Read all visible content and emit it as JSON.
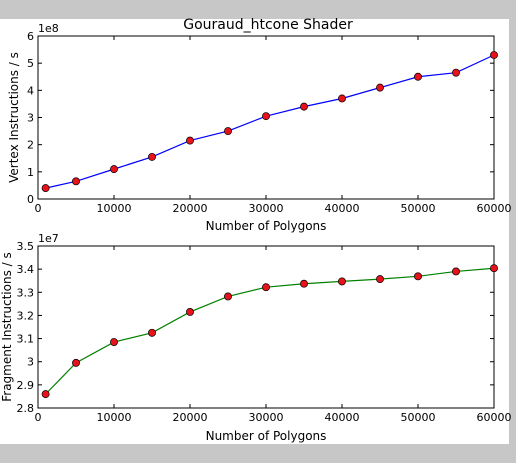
{
  "chart_data": [
    {
      "type": "line",
      "title": "Gouraud_htcone Shader",
      "xlabel": "Number of Polygons",
      "ylabel": "Vertex Instructions / s",
      "y_offset_label": "1e8",
      "xlim": [
        0,
        60000
      ],
      "ylim": [
        0,
        6
      ],
      "x_ticks": [
        0,
        10000,
        20000,
        30000,
        40000,
        50000,
        60000
      ],
      "y_ticks": [
        0,
        1,
        2,
        3,
        4,
        5,
        6
      ],
      "line_color": "#0000ff",
      "marker_color": "#e8121a",
      "series": [
        {
          "name": "Vertex Instructions / s",
          "x": [
            1000,
            5000,
            10000,
            15000,
            20000,
            25000,
            30000,
            35000,
            40000,
            45000,
            50000,
            55000,
            60000
          ],
          "values": [
            0.4,
            0.65,
            1.1,
            1.55,
            2.15,
            2.5,
            3.05,
            3.4,
            3.7,
            4.1,
            4.5,
            4.65,
            5.3
          ]
        }
      ]
    },
    {
      "type": "line",
      "title": "",
      "xlabel": "Number of Polygons",
      "ylabel": "Fragment Instructions / s",
      "y_offset_label": "1e7",
      "xlim": [
        0,
        60000
      ],
      "ylim": [
        2.8,
        3.5
      ],
      "x_ticks": [
        0,
        10000,
        20000,
        30000,
        40000,
        50000,
        60000
      ],
      "y_ticks": [
        2.8,
        2.9,
        3.0,
        3.1,
        3.2,
        3.3,
        3.4,
        3.5
      ],
      "line_color": "#008000",
      "marker_color": "#e8121a",
      "series": [
        {
          "name": "Fragment Instructions / s",
          "x": [
            1000,
            5000,
            10000,
            15000,
            20000,
            25000,
            30000,
            35000,
            40000,
            45000,
            50000,
            55000,
            60000
          ],
          "values": [
            2.86,
            2.995,
            3.085,
            3.125,
            3.215,
            3.282,
            3.322,
            3.337,
            3.347,
            3.357,
            3.369,
            3.39,
            3.404
          ]
        }
      ]
    }
  ]
}
